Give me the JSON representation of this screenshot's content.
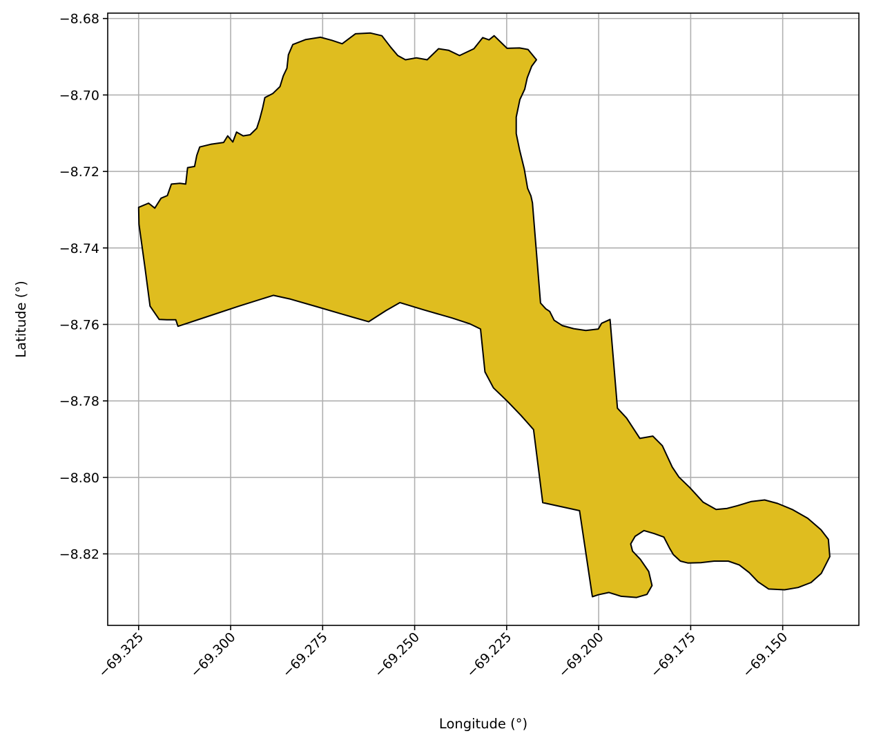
{
  "chart_data": {
    "type": "map",
    "xlabel": "Longitude (°)",
    "ylabel": "Latitude (°)",
    "xlim": [
      -69.3334,
      -69.1293
    ],
    "ylim": [
      -8.8387,
      -8.6786
    ],
    "grid": true,
    "x_ticks": [
      -69.325,
      -69.3,
      -69.275,
      -69.25,
      -69.225,
      -69.2,
      -69.175,
      -69.15
    ],
    "x_tick_labels": [
      "−69.325",
      "−69.300",
      "−69.275",
      "−69.250",
      "−69.225",
      "−69.200",
      "−69.175",
      "−69.150"
    ],
    "y_ticks": [
      -8.68,
      -8.7,
      -8.72,
      -8.74,
      -8.76,
      -8.78,
      -8.8,
      -8.82
    ],
    "y_tick_labels": [
      "−8.68",
      "−8.70",
      "−8.72",
      "−8.74",
      "−8.76",
      "−8.78",
      "−8.80",
      "−8.82"
    ],
    "region": {
      "fill": "#DFBD1F",
      "edge": "#000000",
      "boundary": [
        [
          -69.325,
          -8.7294
        ],
        [
          -69.3223,
          -8.7283
        ],
        [
          -69.3206,
          -8.7296
        ],
        [
          -69.3189,
          -8.727
        ],
        [
          -69.3172,
          -8.7263
        ],
        [
          -69.3161,
          -8.7233
        ],
        [
          -69.3138,
          -8.7231
        ],
        [
          -69.3122,
          -8.7233
        ],
        [
          -69.3117,
          -8.719
        ],
        [
          -69.3098,
          -8.7187
        ],
        [
          -69.3092,
          -8.7158
        ],
        [
          -69.3084,
          -8.7136
        ],
        [
          -69.3054,
          -8.7129
        ],
        [
          -69.3019,
          -8.7124
        ],
        [
          -69.3008,
          -8.7107
        ],
        [
          -69.2994,
          -8.7123
        ],
        [
          -69.2984,
          -8.7097
        ],
        [
          -69.2966,
          -8.7107
        ],
        [
          -69.2947,
          -8.7104
        ],
        [
          -69.2929,
          -8.7087
        ],
        [
          -69.2921,
          -8.7063
        ],
        [
          -69.2913,
          -8.7034
        ],
        [
          -69.2907,
          -8.7007
        ],
        [
          -69.2885,
          -8.6996
        ],
        [
          -69.2866,
          -8.6978
        ],
        [
          -69.2857,
          -8.695
        ],
        [
          -69.2847,
          -8.693
        ],
        [
          -69.2843,
          -8.6895
        ],
        [
          -69.2831,
          -8.6868
        ],
        [
          -69.2796,
          -8.6855
        ],
        [
          -69.2756,
          -8.6849
        ],
        [
          -69.2725,
          -8.6857
        ],
        [
          -69.2697,
          -8.6866
        ],
        [
          -69.2661,
          -8.684
        ],
        [
          -69.262,
          -8.6838
        ],
        [
          -69.2589,
          -8.6845
        ],
        [
          -69.2565,
          -8.6875
        ],
        [
          -69.2546,
          -8.6897
        ],
        [
          -69.2525,
          -8.6908
        ],
        [
          -69.2495,
          -8.6903
        ],
        [
          -69.2466,
          -8.6908
        ],
        [
          -69.2435,
          -8.6879
        ],
        [
          -69.2408,
          -8.6883
        ],
        [
          -69.2378,
          -8.6897
        ],
        [
          -69.2339,
          -8.6879
        ],
        [
          -69.2315,
          -8.685
        ],
        [
          -69.2298,
          -8.6856
        ],
        [
          -69.2284,
          -8.6845
        ],
        [
          -69.2249,
          -8.6878
        ],
        [
          -69.2215,
          -8.6877
        ],
        [
          -69.2192,
          -8.6881
        ],
        [
          -69.2169,
          -8.6908
        ],
        [
          -69.2182,
          -8.6925
        ],
        [
          -69.2194,
          -8.6955
        ],
        [
          -69.2201,
          -8.6985
        ],
        [
          -69.2214,
          -8.7012
        ],
        [
          -69.2224,
          -8.7058
        ],
        [
          -69.2224,
          -8.7101
        ],
        [
          -69.2215,
          -8.7143
        ],
        [
          -69.2202,
          -8.7194
        ],
        [
          -69.2193,
          -8.7244
        ],
        [
          -69.2184,
          -8.7264
        ],
        [
          -69.218,
          -8.7282
        ],
        [
          -69.2158,
          -8.7544
        ],
        [
          -69.2144,
          -8.7559
        ],
        [
          -69.2133,
          -8.7566
        ],
        [
          -69.2121,
          -8.7589
        ],
        [
          -69.2099,
          -8.7603
        ],
        [
          -69.2068,
          -8.7611
        ],
        [
          -69.2035,
          -8.7616
        ],
        [
          -69.2001,
          -8.7612
        ],
        [
          -69.1992,
          -8.7597
        ],
        [
          -69.1969,
          -8.7587
        ],
        [
          -69.1949,
          -8.7819
        ],
        [
          -69.1924,
          -8.7845
        ],
        [
          -69.1888,
          -8.7898
        ],
        [
          -69.1853,
          -8.7892
        ],
        [
          -69.1827,
          -8.7917
        ],
        [
          -69.18,
          -8.7973
        ],
        [
          -69.1782,
          -8.7999
        ],
        [
          -69.1752,
          -8.8027
        ],
        [
          -69.1716,
          -8.8065
        ],
        [
          -69.1681,
          -8.8084
        ],
        [
          -69.1651,
          -8.8081
        ],
        [
          -69.1623,
          -8.8074
        ],
        [
          -69.1585,
          -8.8063
        ],
        [
          -69.1549,
          -8.8059
        ],
        [
          -69.1514,
          -8.8068
        ],
        [
          -69.1474,
          -8.8084
        ],
        [
          -69.1432,
          -8.8107
        ],
        [
          -69.1396,
          -8.8137
        ],
        [
          -69.1376,
          -8.8162
        ],
        [
          -69.1372,
          -8.8207
        ],
        [
          -69.1395,
          -8.8251
        ],
        [
          -69.1423,
          -8.8275
        ],
        [
          -69.1458,
          -8.8288
        ],
        [
          -69.1495,
          -8.8294
        ],
        [
          -69.1538,
          -8.8292
        ],
        [
          -69.1567,
          -8.8273
        ],
        [
          -69.1591,
          -8.8249
        ],
        [
          -69.1618,
          -8.8229
        ],
        [
          -69.1648,
          -8.8219
        ],
        [
          -69.1686,
          -8.8219
        ],
        [
          -69.1722,
          -8.8223
        ],
        [
          -69.1757,
          -8.8224
        ],
        [
          -69.1778,
          -8.8219
        ],
        [
          -69.1797,
          -8.8202
        ],
        [
          -69.1808,
          -8.8184
        ],
        [
          -69.1823,
          -8.8156
        ],
        [
          -69.1849,
          -8.8147
        ],
        [
          -69.1877,
          -8.8139
        ],
        [
          -69.1901,
          -8.8154
        ],
        [
          -69.1913,
          -8.8174
        ],
        [
          -69.1908,
          -8.8193
        ],
        [
          -69.1887,
          -8.8214
        ],
        [
          -69.1864,
          -8.8246
        ],
        [
          -69.1855,
          -8.8283
        ],
        [
          -69.1869,
          -8.8306
        ],
        [
          -69.1897,
          -8.8314
        ],
        [
          -69.1939,
          -8.8311
        ],
        [
          -69.1972,
          -8.8301
        ],
        [
          -69.2001,
          -8.8307
        ],
        [
          -69.2017,
          -8.8312
        ],
        [
          -69.2018,
          -8.8306
        ],
        [
          -69.2052,
          -8.8087
        ],
        [
          -69.2152,
          -8.8066
        ],
        [
          -69.2177,
          -8.7875
        ],
        [
          -69.2211,
          -8.7838
        ],
        [
          -69.2248,
          -8.7801
        ],
        [
          -69.2286,
          -8.7766
        ],
        [
          -69.2309,
          -8.7724
        ],
        [
          -69.2321,
          -8.7612
        ],
        [
          -69.2351,
          -8.7598
        ],
        [
          -69.2399,
          -8.7583
        ],
        [
          -69.2475,
          -8.7562
        ],
        [
          -69.254,
          -8.7543
        ],
        [
          -69.2578,
          -8.7564
        ],
        [
          -69.2625,
          -8.7593
        ],
        [
          -69.2694,
          -8.7574
        ],
        [
          -69.2768,
          -8.7553
        ],
        [
          -69.2837,
          -8.7534
        ],
        [
          -69.2884,
          -8.7524
        ],
        [
          -69.2977,
          -8.7552
        ],
        [
          -69.3068,
          -8.7581
        ],
        [
          -69.3115,
          -8.7596
        ],
        [
          -69.3143,
          -8.7605
        ],
        [
          -69.3149,
          -8.7588
        ],
        [
          -69.3173,
          -8.7588
        ],
        [
          -69.3194,
          -8.7587
        ],
        [
          -69.3219,
          -8.7552
        ],
        [
          -69.3233,
          -8.7449
        ],
        [
          -69.3249,
          -8.7338
        ],
        [
          -69.325,
          -8.7294
        ]
      ]
    }
  }
}
